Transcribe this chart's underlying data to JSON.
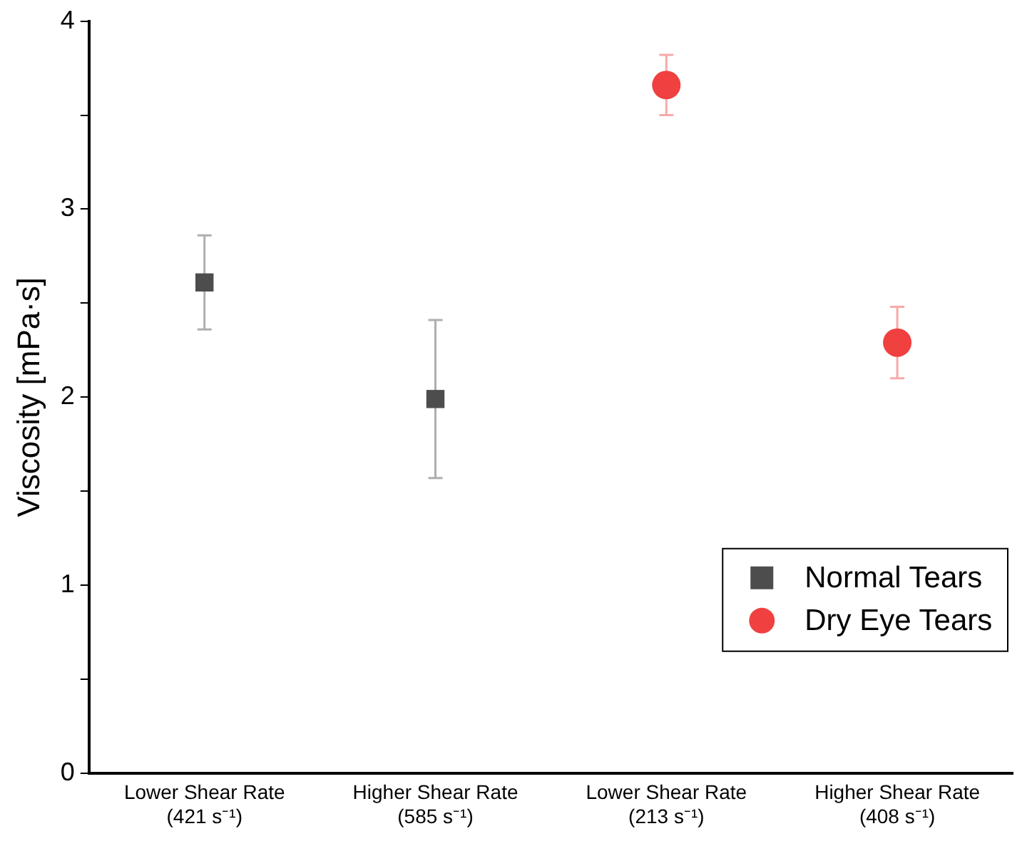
{
  "chart_data": {
    "type": "scatter",
    "ylabel": "Viscosity [mPa·s]",
    "categories": [
      "Lower Shear Rate\n(421 s⁻¹)",
      "Higher Shear Rate\n(585 s⁻¹)",
      "Lower Shear Rate\n(213 s⁻¹)",
      "Higher Shear Rate\n(408 s⁻¹)"
    ],
    "series": [
      {
        "name": "Normal Tears",
        "color": "#4d4d4d",
        "marker": "square",
        "values": [
          2.61,
          1.99,
          null,
          null
        ],
        "errors": [
          0.25,
          0.42,
          null,
          null
        ]
      },
      {
        "name": "Dry Eye Tears",
        "color": "#f04040",
        "marker": "circle",
        "values": [
          null,
          null,
          3.66,
          2.29
        ],
        "errors": [
          null,
          null,
          0.16,
          0.19
        ]
      }
    ],
    "ylim": [
      0,
      4
    ],
    "yticks": [
      0,
      {
        "value": 0.5,
        "label": null
      },
      1,
      {
        "value": 1.5,
        "label": null
      },
      2,
      {
        "value": 2.5,
        "label": null
      },
      3,
      {
        "value": 3.5,
        "label": null
      },
      4
    ],
    "grid": false,
    "legend": "bottom right"
  }
}
